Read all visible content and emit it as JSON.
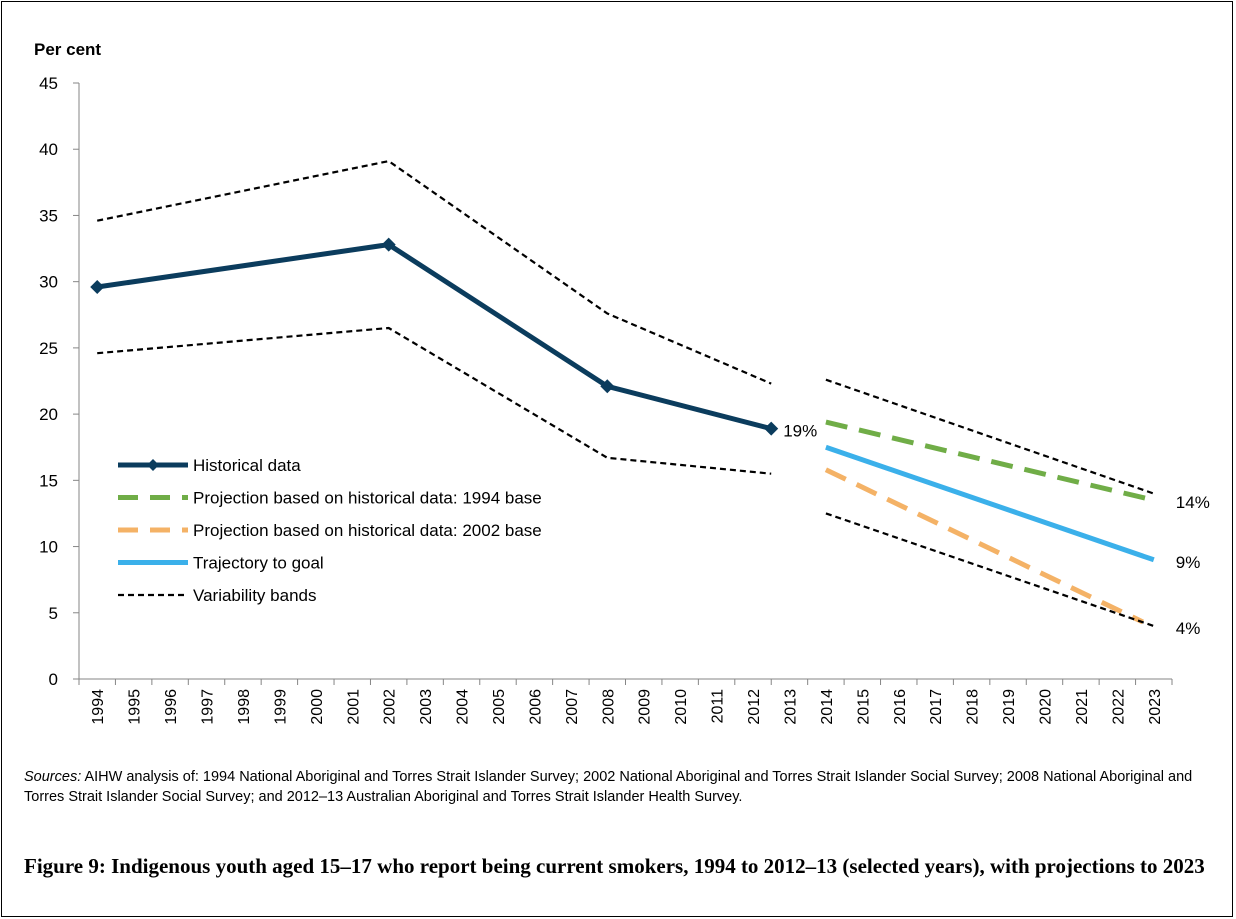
{
  "chart_data": {
    "type": "line",
    "ylabel": "Per cent",
    "ylim": [
      0,
      45
    ],
    "y_ticks": [
      "0",
      "5",
      "10",
      "15",
      "20",
      "25",
      "30",
      "35",
      "40",
      "45"
    ],
    "x_ticks": [
      "1994",
      "1995",
      "1996",
      "1997",
      "1998",
      "1999",
      "2000",
      "2001",
      "2002",
      "2003",
      "2004",
      "2005",
      "2006",
      "2007",
      "2008",
      "2009",
      "2010",
      "2011",
      "2012",
      "2013",
      "2014",
      "2015",
      "2016",
      "2017",
      "2018",
      "2019",
      "2020",
      "2021",
      "2022",
      "2023"
    ],
    "xlim": [
      1994,
      2023
    ],
    "grid": false,
    "legend_position": "lower-left",
    "series": [
      {
        "name": "Historical data",
        "style": "solid-diamond",
        "color": "#0b3c5d",
        "x": [
          1994,
          2002,
          2008,
          2012.5
        ],
        "y": [
          29.6,
          32.8,
          22.1,
          18.9
        ]
      },
      {
        "name": "Projection based on historical data: 1994 base",
        "style": "dashed",
        "color": "#70ad47",
        "x": [
          2014,
          2023
        ],
        "y": [
          19.4,
          13.5
        ]
      },
      {
        "name": "Projection based on historical data: 2002 base",
        "style": "dashed",
        "color": "#f4b266",
        "x": [
          2014,
          2022.7
        ],
        "y": [
          15.8,
          4.3
        ]
      },
      {
        "name": "Trajectory to goal",
        "style": "solid",
        "color": "#3bb0ea",
        "x": [
          2014,
          2023
        ],
        "y": [
          17.5,
          9.0
        ]
      },
      {
        "name": "Variability bands",
        "style": "dotted",
        "color": "#000000",
        "x": [
          1994,
          2002,
          2008,
          2012.5
        ],
        "y": [
          34.6,
          39.1,
          27.6,
          22.3
        ]
      },
      {
        "x": [
          1994,
          2002,
          2008,
          2012.5
        ],
        "y": [
          24.6,
          26.5,
          16.7,
          15.5
        ],
        "style": "dotted",
        "color": "#000000"
      },
      {
        "x": [
          2014,
          2023
        ],
        "y": [
          22.6,
          14.0
        ],
        "style": "dotted",
        "color": "#000000"
      },
      {
        "x": [
          2014,
          2023
        ],
        "y": [
          12.5,
          4.0
        ],
        "style": "dotted",
        "color": "#000000"
      }
    ],
    "annotations": [
      {
        "text": "19%",
        "x": 2012.5,
        "y": 18.9
      },
      {
        "text": "14%",
        "x": 2023,
        "y": 13.5
      },
      {
        "text": "9%",
        "x": 2023,
        "y": 9.0
      },
      {
        "text": "4%",
        "x": 2023,
        "y": 4.0
      }
    ]
  },
  "sources": {
    "lead": "Sources:",
    "text": " AIHW analysis of: 1994 National Aboriginal and Torres Strait Islander Survey; 2002 National Aboriginal and Torres Strait Islander Social Survey; 2008 National Aboriginal and Torres Strait Islander Social Survey; and 2012–13 Australian Aboriginal and Torres Strait Islander Health Survey."
  },
  "caption": "Figure 9: Indigenous youth aged 15–17 who report being current smokers, 1994 to 2012–13 (selected years), with projections to 2023"
}
